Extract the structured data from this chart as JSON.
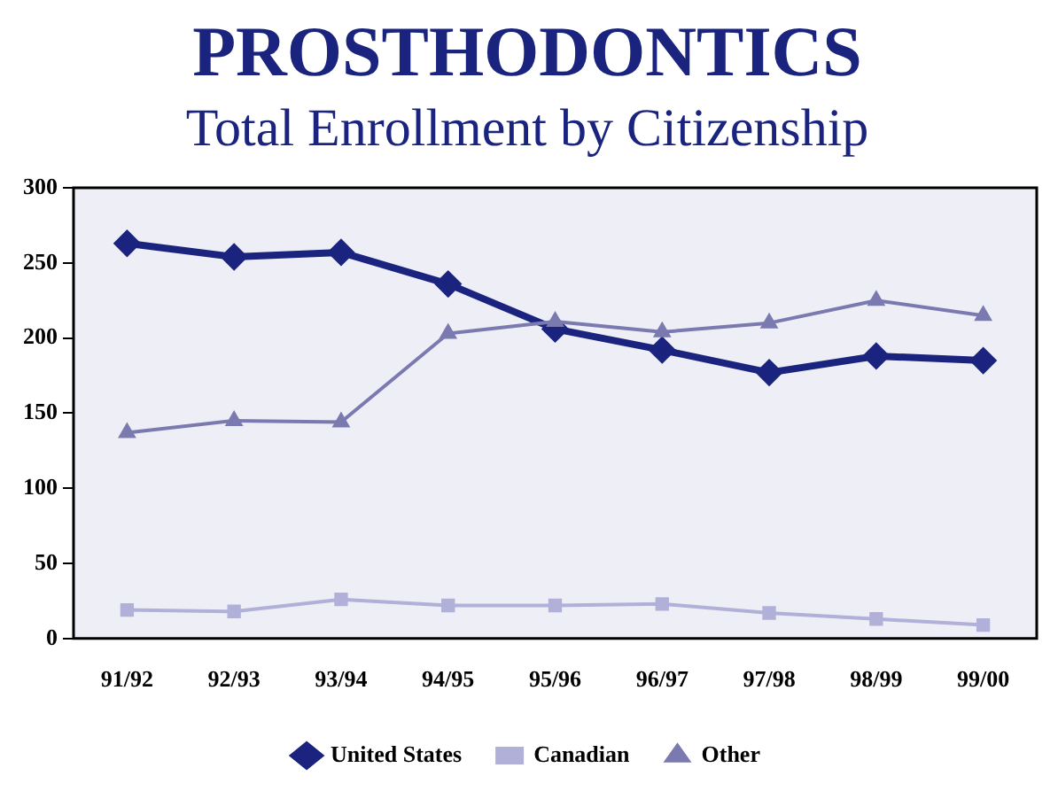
{
  "chart_data": {
    "type": "line",
    "title": "PROSTHODONTICS",
    "subtitle": "Total Enrollment by Citizenship",
    "categories": [
      "91/92",
      "92/93",
      "93/94",
      "94/95",
      "95/96",
      "96/97",
      "97/98",
      "98/99",
      "99/00"
    ],
    "series": [
      {
        "name": "United States",
        "color": "#1a237e",
        "marker": "diamond",
        "values": [
          263,
          254,
          257,
          236,
          206,
          192,
          177,
          188,
          185
        ]
      },
      {
        "name": "Canadian",
        "color": "#b0b0d8",
        "marker": "square",
        "values": [
          19,
          18,
          26,
          22,
          22,
          23,
          17,
          13,
          9
        ]
      },
      {
        "name": "Other",
        "color": "#7a7ab0",
        "marker": "triangle",
        "values": [
          137,
          145,
          144,
          203,
          211,
          204,
          210,
          225,
          215
        ]
      }
    ],
    "ylim": [
      0,
      300
    ],
    "yticks": [
      0,
      50,
      100,
      150,
      200,
      250,
      300
    ],
    "grid": false,
    "legend": "bottom",
    "line_style": "solid"
  }
}
